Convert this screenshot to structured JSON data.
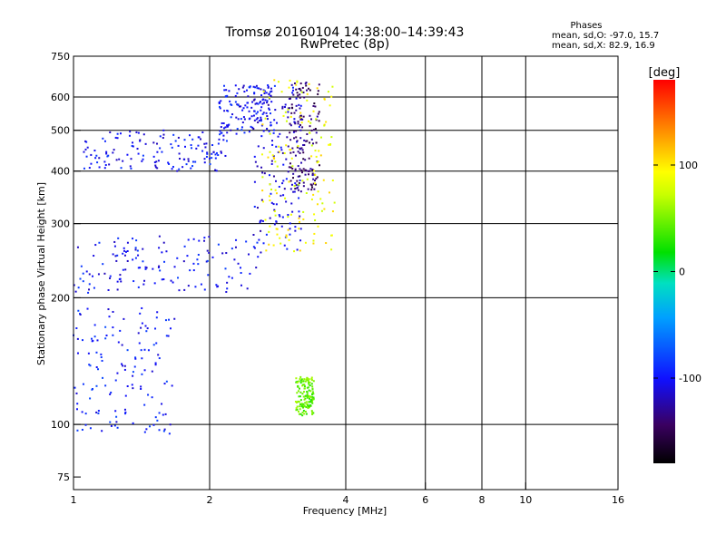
{
  "chart_data": {
    "type": "scatter",
    "title": "Tromsø 20160104 14:38:00–14:39:43",
    "subtitle": "RwPretec (8p)",
    "xlabel": "Frequency [MHz]",
    "ylabel": "Stationary phase Virtual Height [km]",
    "x_scale": "log",
    "y_scale": "log",
    "xlim": [
      1,
      16
    ],
    "ylim": [
      70,
      750
    ],
    "x_ticks": [
      1,
      2,
      4,
      6,
      8,
      10,
      16
    ],
    "y_ticks": [
      75,
      100,
      200,
      300,
      400,
      500,
      600,
      750
    ],
    "x_gridlines": [
      2,
      4,
      6,
      8,
      10
    ],
    "y_gridlines": [
      100,
      200,
      300,
      400,
      500,
      600
    ],
    "grid": true,
    "stats": {
      "heading": "Phases",
      "line_o": "mean, sd,O: -97.0, 15.7",
      "line_x": "mean, sd,X:  82.9, 16.9"
    },
    "colorbar": {
      "label": "[deg]",
      "range": [
        -180,
        180
      ],
      "ticks": [
        100,
        0,
        -100
      ],
      "position": "right"
    },
    "traces": [
      {
        "x_range": [
          1.0,
          2.6
        ],
        "y_range": [
          205,
          280
        ],
        "phase": -100
      },
      {
        "x_range": [
          1.05,
          2.2
        ],
        "y_range": [
          400,
          500
        ],
        "phase": -100
      },
      {
        "x_range": [
          2.1,
          2.8
        ],
        "y_range": [
          490,
          640
        ],
        "phase": -100
      },
      {
        "x_range": [
          2.5,
          3.2
        ],
        "y_range": [
          260,
          640
        ],
        "phase": -110
      },
      {
        "x_range": [
          3.0,
          3.5
        ],
        "y_range": [
          360,
          650
        ],
        "phase": -140
      },
      {
        "x_range": [
          2.6,
          3.8
        ],
        "y_range": [
          255,
          660
        ],
        "phase": 90
      },
      {
        "x_range": [
          1.0,
          1.7
        ],
        "y_range": [
          95,
          190
        ],
        "phase": -95
      },
      {
        "x_range": [
          3.1,
          3.4
        ],
        "y_range": [
          105,
          130
        ],
        "phase": 45
      }
    ]
  }
}
